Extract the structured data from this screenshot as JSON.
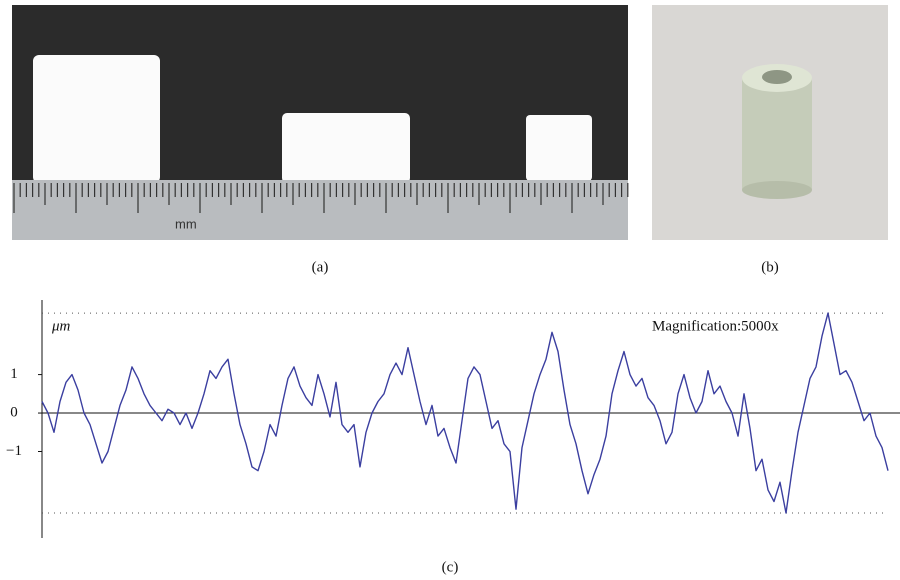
{
  "panels": {
    "a": {
      "label": "(a)",
      "ruler_unit": "mm"
    },
    "b": {
      "label": "(b)"
    }
  },
  "chart_data": {
    "type": "line",
    "label": "(c)",
    "y_label": "μm",
    "annotation": "Magnification:5000x",
    "ylim": [
      -3.25,
      2.94
    ],
    "yticks": [
      1,
      0,
      {
        "value": -1,
        "label": "−1"
      }
    ],
    "reference_lines": [
      2.6,
      -2.6
    ],
    "zero_line": true,
    "color": "#3b3fa0",
    "values": [
      0.3,
      0,
      -0.5,
      0.3,
      0.8,
      1.0,
      0.6,
      0,
      -0.3,
      -0.8,
      -1.3,
      -1.0,
      -0.4,
      0.2,
      0.6,
      1.2,
      0.9,
      0.5,
      0.2,
      0,
      -0.2,
      0.1,
      0,
      -0.3,
      0,
      -0.4,
      0,
      0.5,
      1.1,
      0.9,
      1.2,
      1.4,
      0.5,
      -0.3,
      -0.8,
      -1.4,
      -1.5,
      -1.0,
      -0.3,
      -0.6,
      0.2,
      0.9,
      1.2,
      0.7,
      0.4,
      0.2,
      1.0,
      0.5,
      -0.1,
      0.8,
      -0.3,
      -0.5,
      -0.3,
      -1.4,
      -0.5,
      0,
      0.3,
      0.5,
      1.0,
      1.3,
      1.0,
      1.7,
      1.0,
      0.3,
      -0.3,
      0.2,
      -0.6,
      -0.4,
      -0.9,
      -1.3,
      -0.2,
      0.9,
      1.2,
      1.0,
      0.3,
      -0.4,
      -0.2,
      -0.8,
      -1.0,
      -2.5,
      -0.9,
      -0.2,
      0.5,
      1.0,
      1.4,
      2.1,
      1.6,
      0.6,
      -0.3,
      -0.8,
      -1.5,
      -2.1,
      -1.6,
      -1.2,
      -0.6,
      0.5,
      1.1,
      1.6,
      1.0,
      0.7,
      0.9,
      0.4,
      0.2,
      -0.2,
      -0.8,
      -0.5,
      0.5,
      1.0,
      0.4,
      0,
      0.3,
      1.1,
      0.5,
      0.7,
      0.3,
      0,
      -0.6,
      0.5,
      -0.4,
      -1.5,
      -1.2,
      -2.0,
      -2.3,
      -1.8,
      -2.6,
      -1.5,
      -0.5,
      0.2,
      0.9,
      1.2,
      2.0,
      2.6,
      1.8,
      1.0,
      1.1,
      0.8,
      0.3,
      -0.2,
      0,
      -0.6,
      -0.9,
      -1.5
    ]
  }
}
